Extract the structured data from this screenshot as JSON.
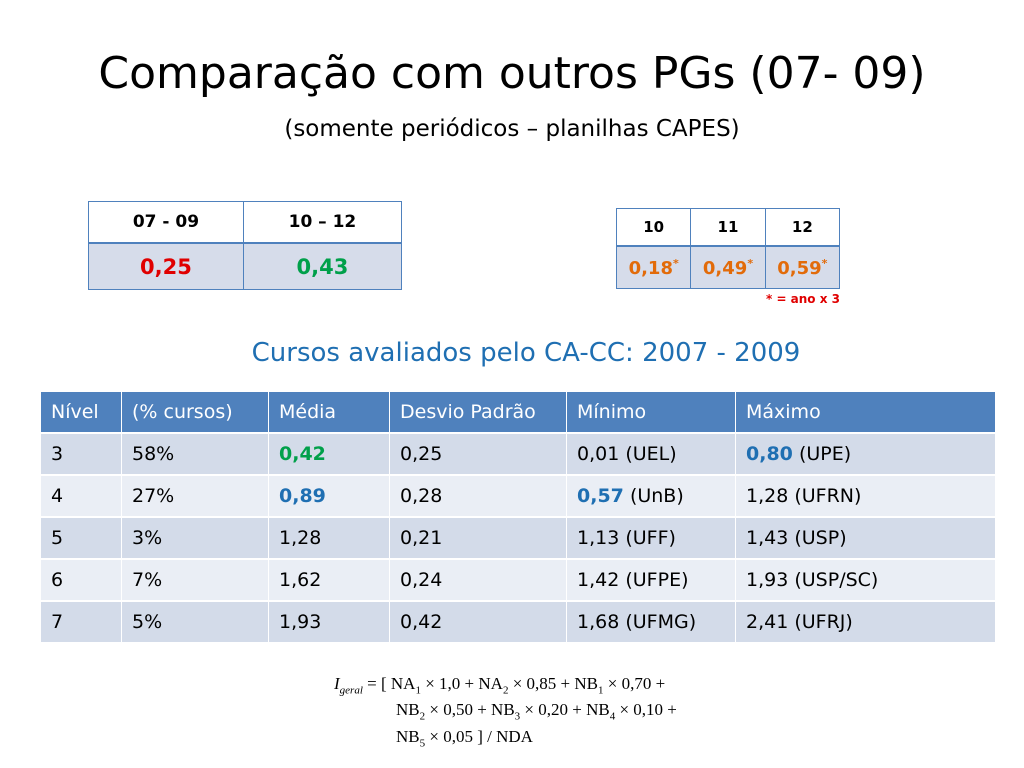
{
  "title": "Comparação com outros PGs (07- 09)",
  "subtitle": "(somente periódicos – planilhas CAPES)",
  "table1": {
    "headers": [
      "07 - 09",
      "10 – 12"
    ],
    "values": [
      "0,25",
      "0,43"
    ]
  },
  "table2": {
    "headers": [
      "10",
      "11",
      "12"
    ],
    "values": [
      "0,18",
      "0,49",
      "0,59"
    ],
    "marker": "*",
    "note": "* = ano x 3"
  },
  "caption": "Cursos avaliados pelo CA-CC: 2007 - 2009",
  "main_table": {
    "headers": [
      "Nível",
      "(% cursos)",
      "Média",
      "Desvio Padrão",
      "Mínimo",
      "Máximo"
    ],
    "rows": [
      {
        "nivel": "3",
        "pct": "58%",
        "media": "0,42",
        "desvio": "0,25",
        "minimo_val": "0,01",
        "minimo_inst": "(UEL)",
        "maximo_val": "0,80",
        "maximo_inst": "(UPE)"
      },
      {
        "nivel": "4",
        "pct": "27%",
        "media": "0,89",
        "desvio": "0,28",
        "minimo_val": "0,57",
        "minimo_inst": "(UnB)",
        "maximo_val": "1,28",
        "maximo_inst": "(UFRN)"
      },
      {
        "nivel": "5",
        "pct": "3%",
        "media": "1,28",
        "desvio": "0,21",
        "minimo_val": "1,13",
        "minimo_inst": "(UFF)",
        "maximo_val": "1,43",
        "maximo_inst": "(USP)"
      },
      {
        "nivel": "6",
        "pct": "7%",
        "media": "1,62",
        "desvio": "0,24",
        "minimo_val": "1,42",
        "minimo_inst": "(UFPE)",
        "maximo_val": "1,93",
        "maximo_inst": "(USP/SC)"
      },
      {
        "nivel": "7",
        "pct": "5%",
        "media": "1,93",
        "desvio": "0,42",
        "minimo_val": "1,68",
        "minimo_inst": "(UFMG)",
        "maximo_val": "2,41",
        "maximo_inst": "(UFRJ)"
      }
    ]
  },
  "formula": {
    "lhs_var": "I",
    "lhs_sub": "geral",
    "line1_start": "= [ NA",
    "na1_sub": "1",
    "na1_rest": " × 1,0  + NA",
    "na2_sub": "2",
    "na2_rest": " × 0,85  + NB",
    "nb1_sub": "1",
    "nb1_rest": " × 0,70 +",
    "line2_start": "NB",
    "nb2_sub": "2",
    "nb2_rest": " × 0,50  + NB",
    "nb3_sub": "3",
    "nb3_rest": " × 0,20   + NB",
    "nb4_sub": "4",
    "nb4_rest": " × 0,10 +",
    "line3_start": "NB",
    "nb5_sub": "5",
    "nb5_rest": " × 0,05 ] / NDA"
  },
  "colors": {
    "accent": "#4f81bd",
    "caption": "#1f6fb2",
    "bad": "#e00000",
    "good": "#00a04a",
    "orange": "#e26b0a"
  }
}
